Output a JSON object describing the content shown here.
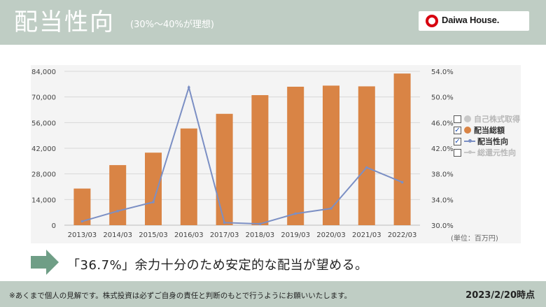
{
  "header": {
    "title": "配当性向",
    "subtitle": "(30%〜40%が理想)",
    "logo_text": "Daiwa House."
  },
  "legend": {
    "items": [
      {
        "label": "自己株式取得",
        "checked": false,
        "color": "#c8c8c8",
        "kind": "dot"
      },
      {
        "label": "配当総額",
        "checked": true,
        "color": "#d98445",
        "kind": "dot"
      },
      {
        "label": "配当性向",
        "checked": true,
        "color": "#7b8fc4",
        "kind": "line"
      },
      {
        "label": "総還元性向",
        "checked": false,
        "color": "#c8c8c8",
        "kind": "line"
      }
    ]
  },
  "unit_label": "(単位：百万円)",
  "message": "「36.7%」余力十分のため安定的な配当が望める。",
  "footer": {
    "disclaimer": "※あくまで個人の見解です。株式投資は必ずご自身の責任と判断のもとで行うようにお願いいたします。",
    "date": "2023/2/20時点"
  },
  "colors": {
    "bar": "#d98445",
    "line": "#7b8fc4",
    "header_bg": "#bfcdc4",
    "chart_bg": "#f4f4f4"
  },
  "chart_data": {
    "type": "bar",
    "categories": [
      "2013/03",
      "2014/03",
      "2015/03",
      "2016/03",
      "2017/03",
      "2018/03",
      "2019/03",
      "2020/03",
      "2021/03",
      "2022/03"
    ],
    "series": [
      {
        "name": "配当総額",
        "type": "bar",
        "axis": "left",
        "values": [
          20000,
          32800,
          39600,
          52800,
          60800,
          71000,
          75600,
          76200,
          75800,
          82800
        ]
      },
      {
        "name": "配当性向",
        "type": "line",
        "axis": "right",
        "values": [
          30.6,
          32.2,
          33.6,
          51.5,
          30.4,
          30.2,
          31.8,
          32.6,
          39.0,
          36.7
        ]
      }
    ],
    "y_left": {
      "ylim": [
        0,
        84000
      ],
      "ticks": [
        "0",
        "14,000",
        "28,000",
        "42,000",
        "56,000",
        "70,000",
        "84,000"
      ]
    },
    "y_right": {
      "ylim": [
        30,
        54
      ],
      "ticks": [
        "30.0%",
        "34.0%",
        "38.0%",
        "42.0%",
        "46.0%",
        "50.0%",
        "54.0%"
      ]
    },
    "grid": true,
    "legend_position": "right"
  }
}
